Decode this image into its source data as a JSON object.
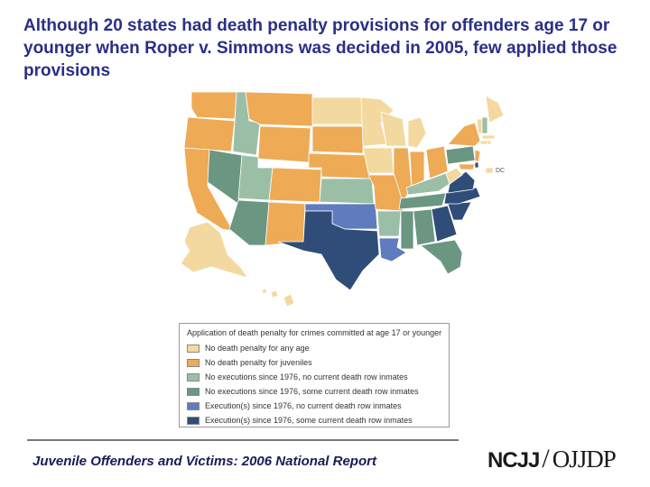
{
  "slide": {
    "title": "Although 20 states had death penalty provisions for offenders age 17 or younger when Roper v. Simmons was decided in 2005, few applied those provisions"
  },
  "colors": {
    "cat1": "#f3d9a0",
    "cat2": "#eeaa55",
    "cat3": "#9bbfa6",
    "cat4": "#6a9682",
    "cat5": "#5e7cbe",
    "cat6": "#2f4d78",
    "border": "#ffffff"
  },
  "map": {
    "dc_label": "DC"
  },
  "legend": {
    "title": "Application of death penalty for crimes committed at age 17 or younger",
    "items": [
      {
        "label": "No death penalty for any age",
        "color": "#f3d9a0"
      },
      {
        "label": "No death penalty for juveniles",
        "color": "#eeaa55"
      },
      {
        "label": "No executions since 1976, no current death row inmates",
        "color": "#9bbfa6"
      },
      {
        "label": "No executions since 1976, some current death row inmates",
        "color": "#6a9682"
      },
      {
        "label": "Execution(s) since 1976, no current death row inmates",
        "color": "#5e7cbe"
      },
      {
        "label": "Execution(s) since 1976, some current death row inmates",
        "color": "#2f4d78"
      }
    ]
  },
  "footer": {
    "report_title": "Juvenile Offenders and Victims: 2006 National Report",
    "logo_left": "NCJJ",
    "logo_slash": "/",
    "logo_right": "OJJDP"
  }
}
